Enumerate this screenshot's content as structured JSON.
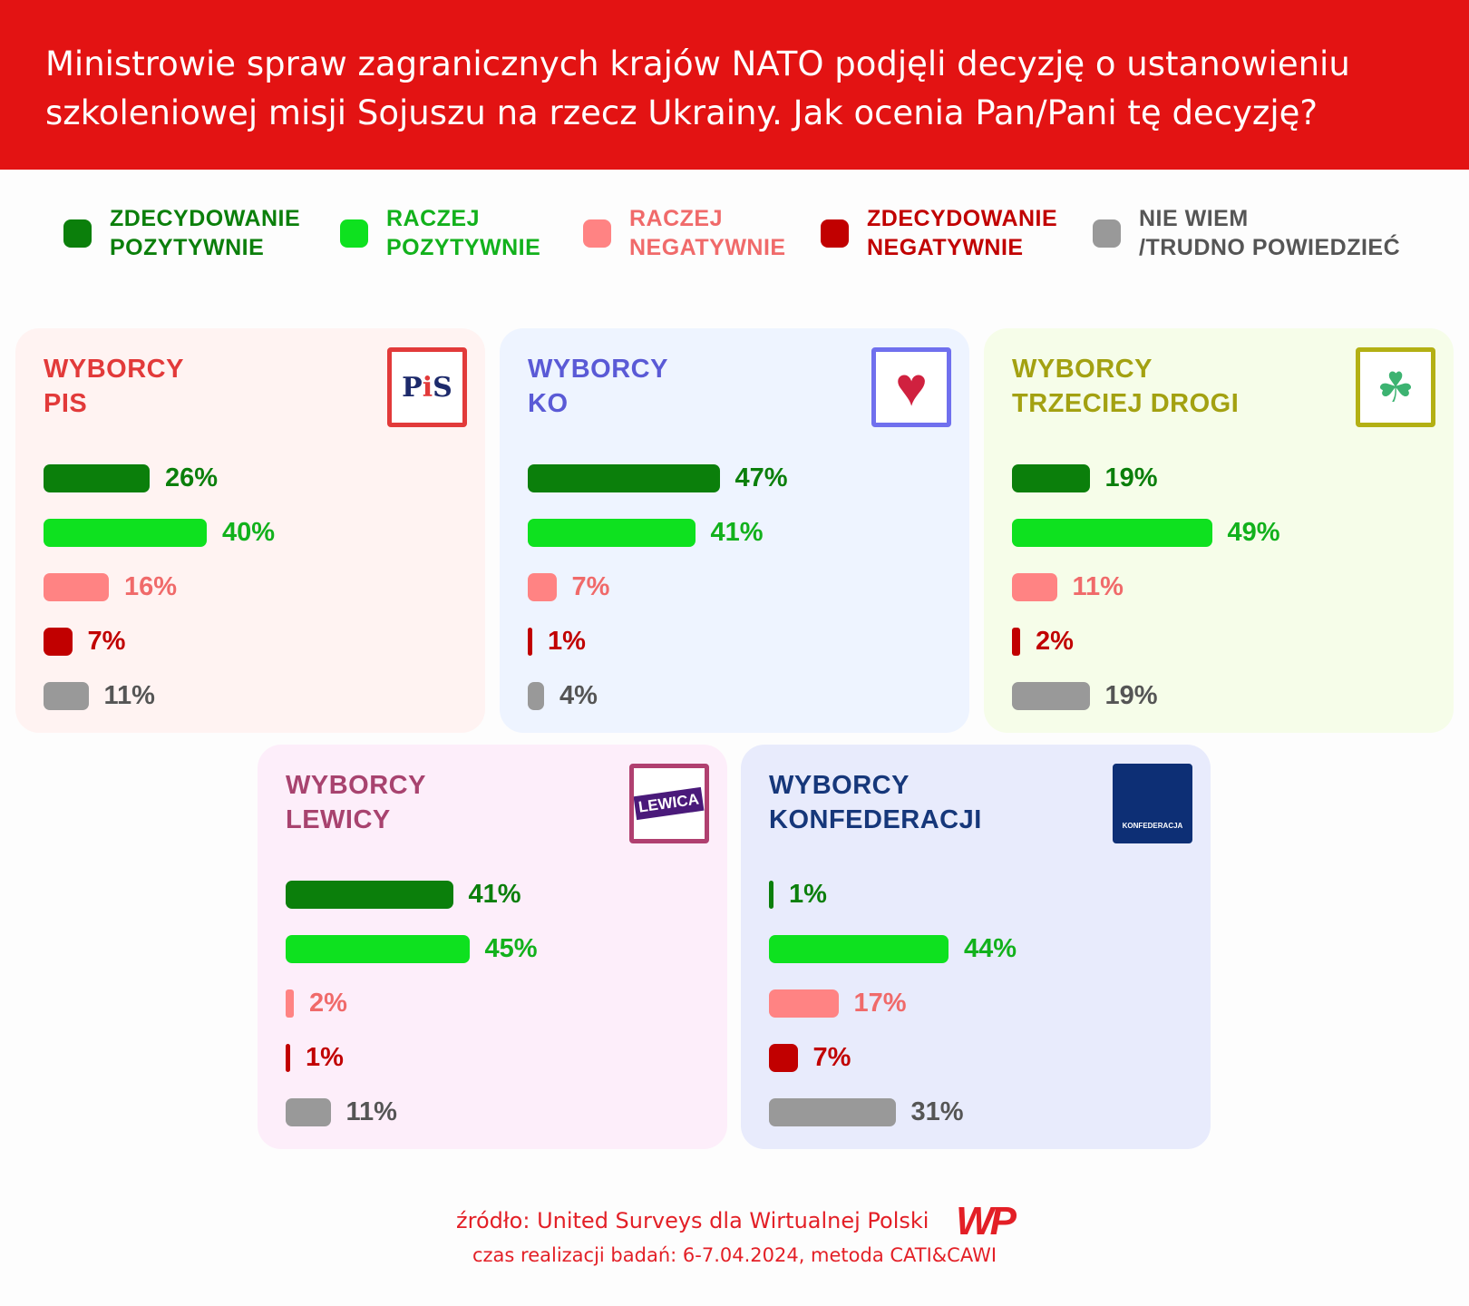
{
  "header": {
    "title_line1": "Ministrowie spraw zagranicznych krajów NATO podjęli decyzję o ustanowieniu",
    "title_line2": "szkoleniowej misji Sojuszu  na rzecz Ukrainy. Jak ocenia Pan/Pani tę decyzję?"
  },
  "legend": [
    {
      "label": "ZDECYDOWANIE\nPOZYTYWNIE",
      "color": "#0b7f0b"
    },
    {
      "label": "RACZEJ\nPOZYTYWNIE",
      "color": "#0ee11f"
    },
    {
      "label": "RACZEJ\nNEGATYWNIE",
      "color": "#ff8383"
    },
    {
      "label": "ZDECYDOWANIE\nNEGATYWNIE",
      "color": "#c10000"
    },
    {
      "label": "NIE WIEM\n/TRUDNO POWIEDZIEĆ",
      "color": "#999999"
    }
  ],
  "legend_text_colors": [
    "#0b7f0b",
    "#12b11c",
    "#f06a6a",
    "#c10000",
    "#555555"
  ],
  "chart_data": {
    "type": "bar",
    "categories": [
      "ZDECYDOWANIE POZYTYWNIE",
      "RACZEJ POZYTYWNIE",
      "RACZEJ NEGATYWNIE",
      "ZDECYDOWANIE NEGATYWNIE",
      "NIE WIEM /TRUDNO POWIEDZIEĆ"
    ],
    "unit": "%",
    "panels": [
      {
        "title": "WYBORCY\nPIS",
        "logo_text": "PiS",
        "title_color": "#e23a3a",
        "bg": "#fff3f2",
        "border": "#e23a3a",
        "values": [
          26,
          40,
          16,
          7,
          11
        ]
      },
      {
        "title": "WYBORCY\nKO",
        "logo_text": "",
        "title_color": "#5a5ad6",
        "bg": "#eef4ff",
        "border": "#7070ee",
        "values": [
          47,
          41,
          7,
          1,
          4
        ]
      },
      {
        "title": "WYBORCY\nTRZECIEJ DROGI",
        "logo_text": "",
        "title_color": "#a3a111",
        "bg": "#f6fde9",
        "border": "#b3b014",
        "values": [
          19,
          49,
          11,
          2,
          19
        ]
      },
      {
        "title": "WYBORCY\nLEWICY",
        "logo_text": "LEWICA",
        "title_color": "#a8436f",
        "bg": "#fdeefa",
        "border": "#b04070",
        "values": [
          41,
          45,
          2,
          1,
          11
        ]
      },
      {
        "title": "WYBORCY\nKONFEDERACJI",
        "logo_text": "KONFEDERACJA",
        "title_color": "#16377a",
        "bg": "#e8ebfc",
        "border": "#0d2f75",
        "values": [
          1,
          44,
          17,
          7,
          31
        ]
      }
    ],
    "label_colors": [
      "#0b7f0b",
      "#12b11c",
      "#f06a6a",
      "#c10000",
      "#555555"
    ]
  },
  "footer": {
    "source": "źródło: United Surveys dla Wirtualnej Polski",
    "logo": "WP",
    "method": "czas realizacji badań: 6-7.04.2024, metoda CATI&CAWI"
  }
}
